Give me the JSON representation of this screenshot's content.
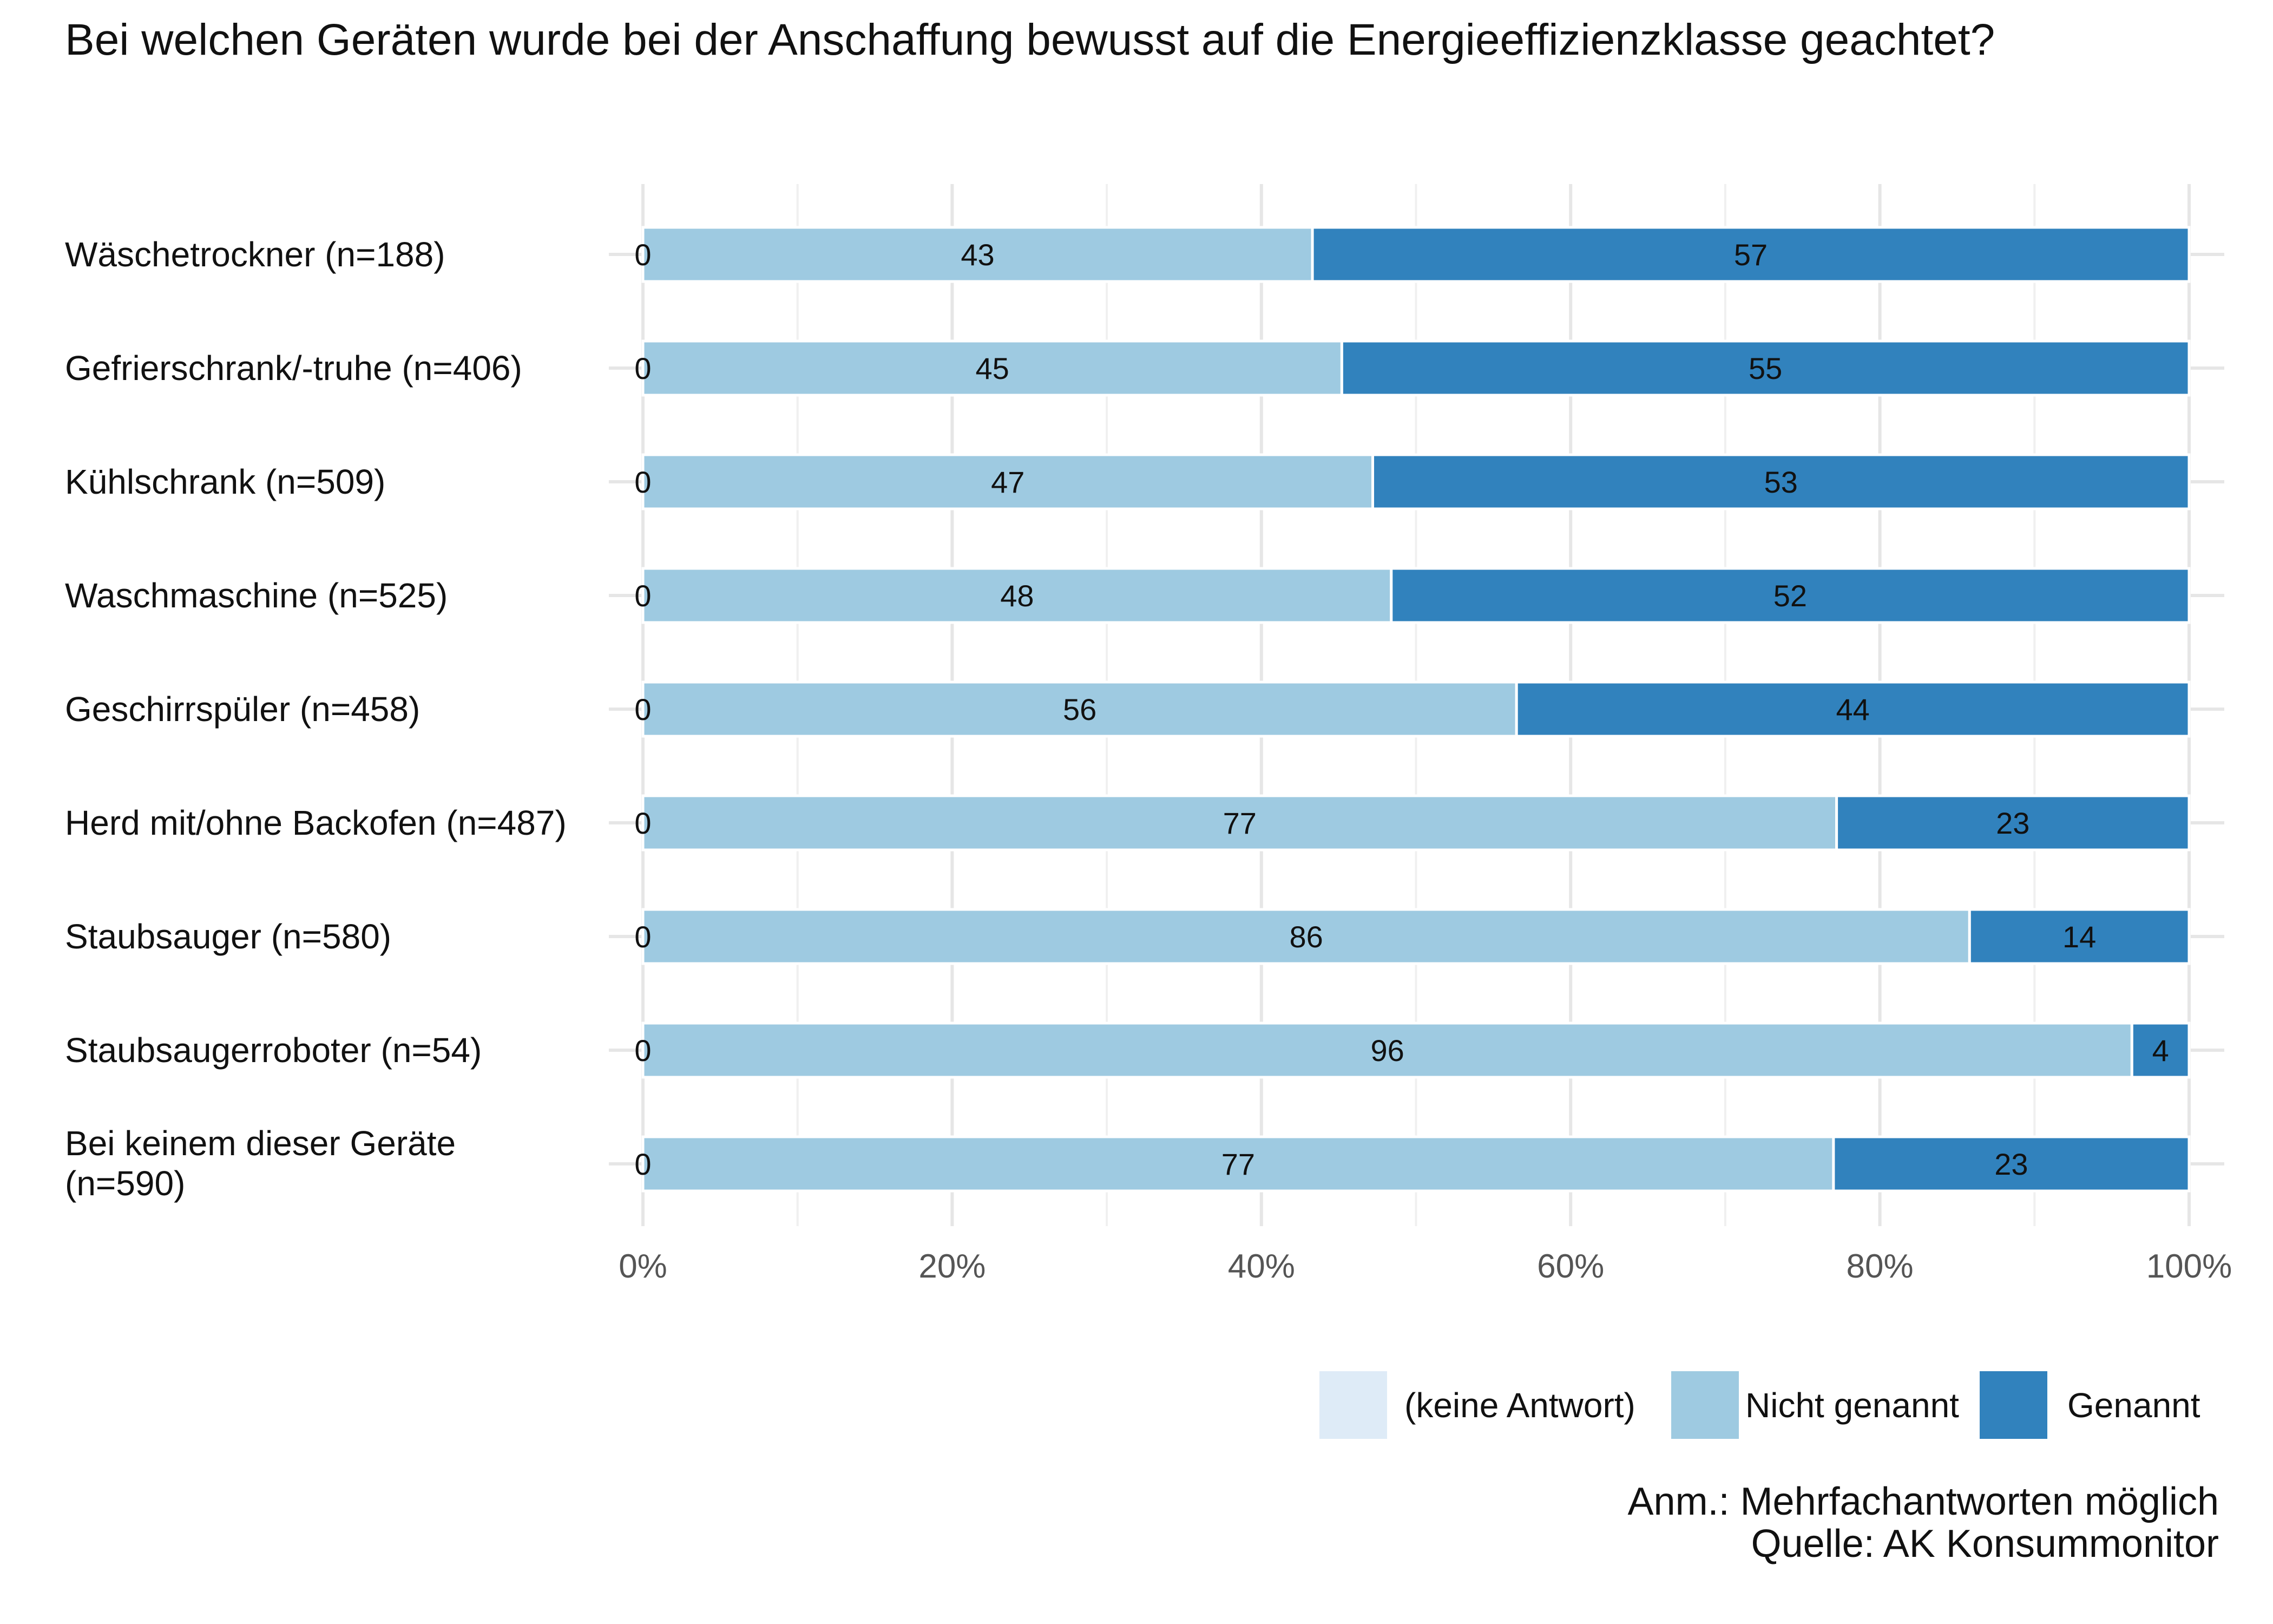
{
  "chart_data": {
    "type": "bar",
    "orientation": "horizontal",
    "stacked": true,
    "title": "Bei welchen Geräten wurde bei der Anschaffung bewusst auf die Energieeffizienzklasse geachtet?",
    "categories": [
      "Wäschetrockner (n=188)",
      "Gefrierschrank/-truhe (n=406)",
      "Kühlschrank (n=509)",
      "Waschmaschine (n=525)",
      "Geschirrspüler (n=458)",
      "Herd mit/ohne Backofen (n=487)",
      "Staubsauger (n=580)",
      "Staubsaugerroboter (n=54)",
      "Bei keinem dieser Geräte (n=590)"
    ],
    "series": [
      {
        "name": "(keine Antwort)",
        "color": "#deebf7",
        "values": [
          0,
          0,
          0,
          0,
          0,
          0,
          0,
          0,
          0
        ]
      },
      {
        "name": "Nicht genannt",
        "color": "#9ecae1",
        "values": [
          43.3,
          45.2,
          47.2,
          48.4,
          56.5,
          77.2,
          85.8,
          96.3,
          77.0
        ]
      },
      {
        "name": "Genannt",
        "color": "#3182bd",
        "values": [
          56.7,
          54.8,
          52.8,
          51.6,
          43.5,
          22.8,
          14.2,
          3.7,
          23.0
        ]
      }
    ],
    "value_labels": {
      "keine_antwort": [
        "0",
        "0",
        "0",
        "0",
        "0",
        "0",
        "0",
        "0",
        "0"
      ],
      "nicht_genannt": [
        "43",
        "45",
        "47",
        "48",
        "56",
        "77",
        "86",
        "96",
        "77"
      ],
      "genannt": [
        "57",
        "55",
        "53",
        "52",
        "44",
        "23",
        "14",
        "4",
        "23"
      ]
    },
    "x_ticks": [
      "0%",
      "20%",
      "40%",
      "60%",
      "80%",
      "100%"
    ],
    "xlim": [
      0,
      100
    ],
    "xlabel": "",
    "ylabel": "",
    "grid": true,
    "legend": {
      "position": "bottom-right",
      "entries": [
        "(keine Antwort)",
        "Nicht genannt",
        "Genannt"
      ]
    }
  },
  "notes": {
    "line1": "Anm.: Mehrfachantworten möglich",
    "line2": "Quelle: AK Konsummonitor"
  }
}
